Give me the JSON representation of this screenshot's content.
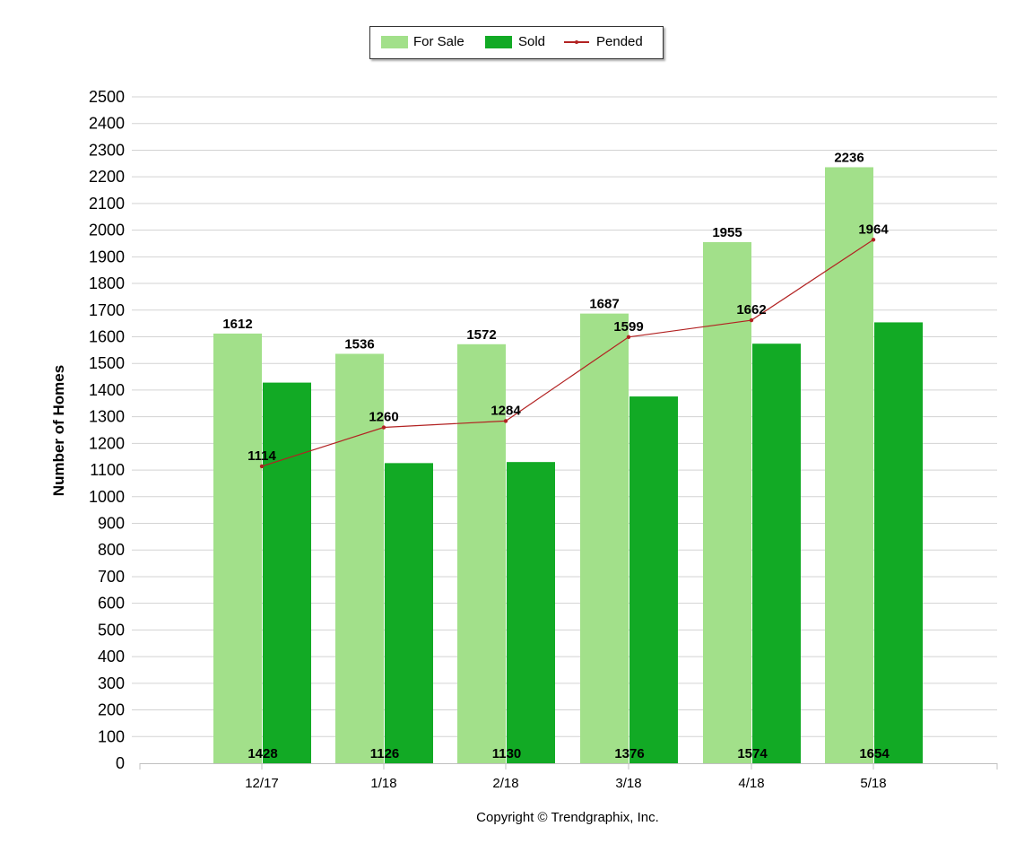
{
  "chart_data": {
    "type": "bar",
    "categories": [
      "12/17",
      "1/18",
      "2/18",
      "3/18",
      "4/18",
      "5/18"
    ],
    "series": [
      {
        "name": "For Sale",
        "kind": "bar",
        "color": "#a2e08a",
        "values": [
          1612,
          1536,
          1572,
          1687,
          1955,
          2236
        ]
      },
      {
        "name": "Sold",
        "kind": "bar",
        "color": "#12aa25",
        "values": [
          1428,
          1126,
          1130,
          1376,
          1574,
          1654
        ]
      },
      {
        "name": "Pended",
        "kind": "line",
        "color": "#b22222",
        "values": [
          1114,
          1260,
          1284,
          1599,
          1662,
          1964
        ]
      }
    ],
    "ylabel": "Number of Homes",
    "ylim": [
      0,
      2500
    ],
    "yticks": [
      0,
      100,
      200,
      300,
      400,
      500,
      600,
      700,
      800,
      900,
      1000,
      1100,
      1200,
      1300,
      1400,
      1500,
      1600,
      1700,
      1800,
      1900,
      2000,
      2100,
      2200,
      2300,
      2400,
      2500
    ],
    "grid": true,
    "legend_position": "top-center"
  },
  "footer": {
    "copyright": "Copyright © Trendgraphix, Inc."
  }
}
